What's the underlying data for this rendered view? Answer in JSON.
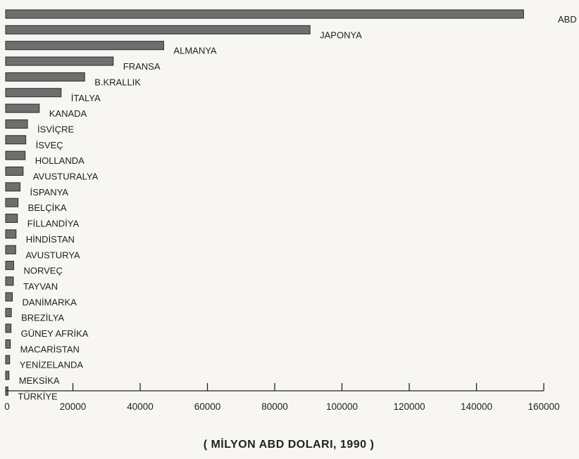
{
  "chart_data": {
    "type": "bar",
    "orientation": "horizontal",
    "categories": [
      "ABD",
      "JAPONYA",
      "ALMANYA",
      "FRANSA",
      "B.KRALLIK",
      "İTALYA",
      "KANADA",
      "İSVİÇRE",
      "İSVEÇ",
      "HOLLANDA",
      "AVUSTURALYA",
      "İSPANYA",
      "BELÇİKA",
      "FİLLANDİYA",
      "HİNDİSTAN",
      "AVUSTURYA",
      "NORVEÇ",
      "TAYVAN",
      "DANİMARKA",
      "BREZİLYA",
      "GÜNEY AFRİKA",
      "MACARİSTAN",
      "YENİZELANDA",
      "MEKSİKA",
      "TÜRKİYE"
    ],
    "values": [
      154000,
      90500,
      47000,
      32000,
      23500,
      16500,
      10000,
      6500,
      6000,
      5800,
      5200,
      4300,
      3700,
      3500,
      3100,
      3000,
      2400,
      2300,
      2000,
      1700,
      1600,
      1400,
      1200,
      1000,
      700
    ],
    "xlim": [
      0,
      160000
    ],
    "xticks": [
      0,
      20000,
      40000,
      60000,
      80000,
      100000,
      120000,
      140000,
      160000
    ],
    "xlabel": "( MİLYON ABD DOLARI, 1990 )",
    "grid": false,
    "bar_color": "#6e6e6e"
  }
}
